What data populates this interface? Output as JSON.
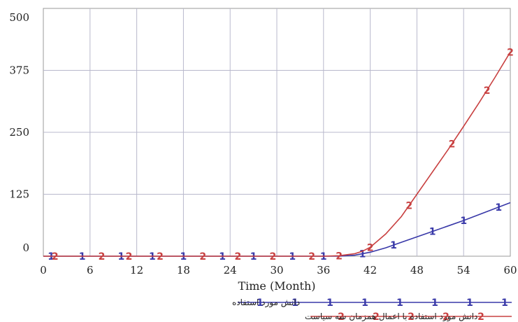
{
  "chart_data": {
    "type": "line",
    "xlabel": "Time (Month)",
    "ylabel": "",
    "xlim": [
      0,
      60
    ],
    "ylim": [
      0,
      500
    ],
    "x_ticks": [
      0,
      6,
      12,
      18,
      24,
      30,
      36,
      42,
      48,
      54,
      60
    ],
    "y_ticks": [
      0,
      125,
      250,
      375,
      500
    ],
    "grid": true,
    "legend_position": "bottom",
    "series": [
      {
        "name": "دانش مورد استفاده",
        "marker": "1",
        "color": "#3838a8",
        "x": [
          0,
          6,
          12,
          18,
          24,
          30,
          36,
          38,
          40,
          41,
          42,
          44,
          46,
          48,
          50,
          52,
          54,
          56,
          58,
          60
        ],
        "y": [
          0,
          0,
          0,
          0,
          0,
          0,
          0,
          0,
          2,
          5,
          8,
          17,
          28,
          39,
          50,
          61,
          72,
          84,
          96,
          108
        ]
      },
      {
        "name": "دانش مورد استفاده با اعمال همزمان سه سیاست",
        "marker": "2",
        "color": "#c84040",
        "x": [
          0,
          6,
          12,
          18,
          24,
          30,
          36,
          38,
          40,
          41,
          42,
          44,
          46,
          48,
          50,
          52,
          54,
          56,
          58,
          60
        ],
        "y": [
          0,
          0,
          0,
          0,
          0,
          0,
          0,
          1,
          5,
          10,
          18,
          45,
          80,
          125,
          170,
          215,
          262,
          310,
          360,
          412
        ]
      }
    ]
  }
}
